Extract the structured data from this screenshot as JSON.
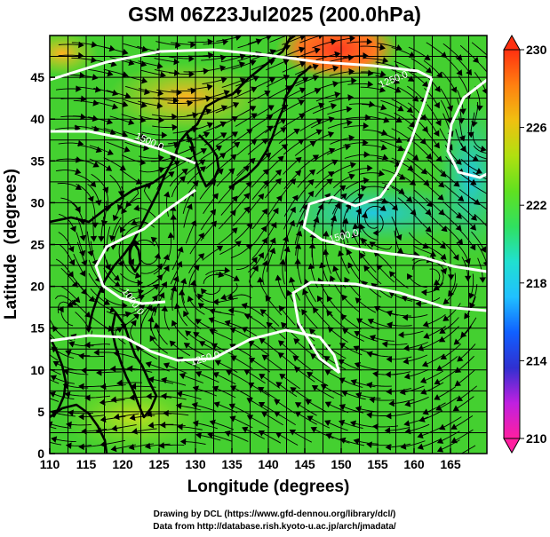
{
  "title": "GSM 06Z23Jul2025 (200.0hPa)",
  "xlabel": "Longitude (degrees)",
  "ylabel": "Latitude  (degrees)",
  "credit_line1": "Drawing by DCL (https://www.gfd-dennou.org/library/dcl/)",
  "credit_line2": "Data from http://database.rish.kyoto-u.ac.jp/arch/jmadata/",
  "colors": {
    "map_low": "#20c8c8",
    "map_mid": "#3cd02a",
    "map_high": "#f0c010",
    "contours": "#ffffff",
    "streamlines": "#000000"
  },
  "chart_data": {
    "type": "heatmap",
    "variable": "temperature-like field at 200.0hPa with streamlines",
    "x_ticks": [
      110,
      115,
      120,
      125,
      130,
      135,
      140,
      145,
      150,
      155,
      160,
      165
    ],
    "x_tick_labels": [
      "110",
      "115",
      "120",
      "125",
      "130",
      "135",
      "140",
      "145",
      "150",
      "155",
      "160",
      "165"
    ],
    "y_ticks": [
      0,
      5,
      10,
      15,
      20,
      25,
      30,
      35,
      40,
      45
    ],
    "y_tick_labels": [
      "0",
      "5",
      "10",
      "15",
      "20",
      "25",
      "30",
      "35",
      "40",
      "45"
    ],
    "xlim": [
      110,
      170
    ],
    "ylim": [
      0,
      50
    ],
    "grid": true,
    "colorbar": {
      "labels": [
        "230",
        "226",
        "222",
        "218",
        "214",
        "210"
      ],
      "range": [
        210,
        230
      ],
      "colors": [
        "#ff1fa0",
        "#c020e0",
        "#3030d0",
        "#1060ff",
        "#20c0ff",
        "#20e0d0",
        "#30e060",
        "#60e020",
        "#b0e010",
        "#f0c010",
        "#ff8010",
        "#ff3010"
      ]
    },
    "contour_labels": [
      {
        "text": "1500.0",
        "lon": 126,
        "lat": 41
      },
      {
        "text": "1250.0",
        "lon": 151,
        "lat": 45
      },
      {
        "text": "1500.0",
        "lon": 149,
        "lat": 29
      },
      {
        "text": "1250.0",
        "lon": 132,
        "lat": 14
      },
      {
        "text": "1000.0",
        "lon": 122,
        "lat": 21
      }
    ]
  }
}
